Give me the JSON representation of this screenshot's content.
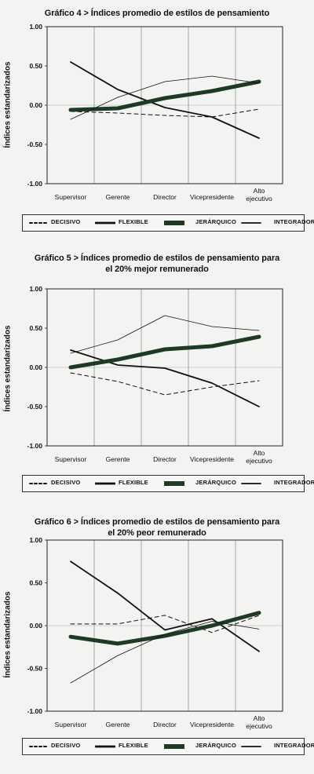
{
  "chart_data": [
    {
      "type": "line",
      "title": "Gráfico 4 > Índices promedio de estilos de pensamiento",
      "ylabel": "Índices estandarizados",
      "xlabel": "",
      "ylim": [
        -1.0,
        1.0
      ],
      "yticks": [
        "1.00",
        "0.50",
        "0.00",
        "-0.50",
        "-1.00"
      ],
      "ytick_values": [
        1.0,
        0.5,
        0.0,
        -0.5,
        -1.0
      ],
      "categories": [
        "Supervisor",
        "Gerente",
        "Director",
        "Vicepresidente",
        "Alto ejecutivo"
      ],
      "grid": "vertical",
      "legend": "bottom",
      "series": [
        {
          "name": "DECISIVO",
          "values": [
            -0.08,
            -0.1,
            -0.13,
            -0.15,
            -0.05
          ]
        },
        {
          "name": "FLEXIBLE",
          "values": [
            0.55,
            0.2,
            -0.03,
            -0.15,
            -0.42
          ]
        },
        {
          "name": "JERÁRQUICO",
          "values": [
            -0.06,
            -0.04,
            0.09,
            0.18,
            0.3
          ]
        },
        {
          "name": "INTEGRADOR",
          "values": [
            -0.18,
            0.1,
            0.3,
            0.37,
            0.28
          ]
        }
      ]
    },
    {
      "type": "line",
      "title": "Gráfico 5 > Índices promedio de estilos de pensamiento para el 20% mejor remunerado",
      "ylabel": "Índices estandarizados",
      "xlabel": "",
      "ylim": [
        -1.0,
        1.0
      ],
      "yticks": [
        "1.00",
        "0.50",
        "0.00",
        "-0.50",
        "-1.00"
      ],
      "ytick_values": [
        1.0,
        0.5,
        0.0,
        -0.5,
        -1.0
      ],
      "categories": [
        "Supervisor",
        "Gerente",
        "Director",
        "Vicepresidente",
        "Alto ejecutivo"
      ],
      "grid": "vertical",
      "legend": "bottom",
      "series": [
        {
          "name": "DECISIVO",
          "values": [
            -0.07,
            -0.18,
            -0.35,
            -0.25,
            -0.17
          ]
        },
        {
          "name": "FLEXIBLE",
          "values": [
            0.22,
            0.03,
            -0.01,
            -0.2,
            -0.5
          ]
        },
        {
          "name": "JERÁRQUICO",
          "values": [
            0.0,
            0.1,
            0.23,
            0.27,
            0.39
          ]
        },
        {
          "name": "INTEGRADOR",
          "values": [
            0.18,
            0.35,
            0.66,
            0.52,
            0.47
          ]
        }
      ]
    },
    {
      "type": "line",
      "title": "Gráfico 6 > Índices promedio de estilos de pensamiento para el 20% peor remunerado",
      "ylabel": "Índices estandarizados",
      "xlabel": "",
      "ylim": [
        -1.0,
        1.0
      ],
      "yticks": [
        "1.00",
        "0.50",
        "0.00",
        "-0.50",
        "-1.00"
      ],
      "ytick_values": [
        1.0,
        0.5,
        0.0,
        -0.5,
        -1.0
      ],
      "categories": [
        "Supervisor",
        "Gerente",
        "Director",
        "Vicepresidente",
        "Alto ejecutivo"
      ],
      "grid": "vertical",
      "legend": "bottom",
      "series": [
        {
          "name": "DECISIVO",
          "values": [
            0.02,
            0.02,
            0.12,
            -0.08,
            0.12
          ]
        },
        {
          "name": "FLEXIBLE",
          "values": [
            0.75,
            0.38,
            -0.05,
            0.08,
            -0.3
          ]
        },
        {
          "name": "JERÁRQUICO",
          "values": [
            -0.13,
            -0.21,
            -0.12,
            0.0,
            0.15
          ]
        },
        {
          "name": "INTEGRADOR",
          "values": [
            -0.67,
            -0.35,
            -0.1,
            0.05,
            -0.04
          ]
        }
      ]
    }
  ],
  "legend": {
    "items": [
      {
        "label": "DECISIVO",
        "style": "dashed"
      },
      {
        "label": "FLEXIBLE",
        "style": "solid"
      },
      {
        "label": "JERÁRQUICO",
        "style": "thick"
      },
      {
        "label": "INTEGRADOR",
        "style": "thin"
      }
    ]
  },
  "colors": {
    "line": "#111111",
    "thick": "#1e3a24",
    "background": "#f3f3f1"
  }
}
